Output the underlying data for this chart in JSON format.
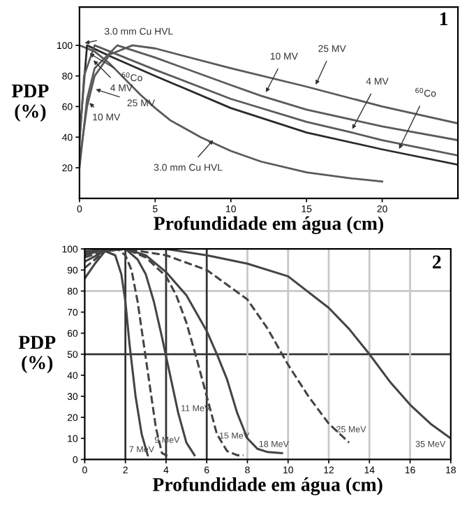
{
  "chart_data": [
    {
      "type": "line",
      "xlabel": "Profundidade em água (cm)",
      "ylabel": "PDP\n(%)",
      "xlim": [
        0,
        25
      ],
      "ylim": [
        0,
        125
      ],
      "xticks": [
        0,
        5,
        10,
        15,
        20
      ],
      "yticks": [
        20,
        40,
        60,
        80,
        100
      ],
      "grid": false,
      "legend": false,
      "marker": "none",
      "series": [
        {
          "color": "#5a5a5a",
          "x": [
            0,
            1,
            2,
            3,
            4,
            5,
            6,
            8,
            10,
            12,
            15,
            18,
            20
          ],
          "values": [
            100,
            96,
            88,
            78,
            68,
            59,
            51,
            40,
            31,
            24,
            17,
            13,
            11
          ]
        },
        {
          "color": "#2a2a2a",
          "x": [
            0,
            0.5,
            2,
            5,
            10,
            15,
            20,
            25
          ],
          "values": [
            40,
            100,
            93,
            80,
            59,
            43,
            32,
            22
          ]
        },
        {
          "color": "#5a5a5a",
          "x": [
            0,
            0.3,
            1,
            5,
            10,
            15,
            18,
            20,
            25
          ],
          "values": [
            35,
            80,
            100,
            84,
            65,
            50,
            43,
            38,
            28
          ]
        },
        {
          "color": "#5a5a5a",
          "x": [
            0,
            0.5,
            1,
            2.5,
            5,
            10,
            12,
            15,
            20,
            25
          ],
          "values": [
            20,
            65,
            85,
            100,
            92,
            74,
            67,
            58,
            47,
            38
          ]
        },
        {
          "color": "#5a5a5a",
          "x": [
            0,
            0.5,
            1,
            2,
            3.5,
            5,
            10,
            15,
            20,
            25
          ],
          "values": [
            25,
            60,
            80,
            94,
            100,
            98,
            85,
            73,
            60,
            49
          ]
        }
      ],
      "annotations": [
        "1",
        {
          "text": "3.0 mm Cu HVL",
          "x": 0.1,
          "y": 101
        },
        {
          "text": "$^{60}$Co",
          "x": 0.45,
          "y": 96
        },
        {
          "text": "4 MV",
          "x": 0.74,
          "y": 92
        },
        {
          "text": "25 MV",
          "x": 0.83,
          "y": 72
        },
        {
          "text": "10 MV",
          "x": 0.46,
          "y": 64
        },
        {
          "text": "3.0 mm Cu HVL",
          "x": 9,
          "y": 40
        },
        {
          "text": "10 MV",
          "x": 12.2,
          "y": 67
        },
        {
          "text": "25 MV",
          "x": 15.5,
          "y": 72
        },
        {
          "text": "4 MV",
          "x": 17.9,
          "y": 43
        },
        {
          "text": "$^{60}$Co",
          "x": 21,
          "y": 30
        }
      ]
    },
    {
      "type": "line",
      "xlabel": "Profundidade em água (cm)",
      "ylabel": "PDP\n(%)",
      "xlim": [
        0,
        18
      ],
      "ylim": [
        0,
        100
      ],
      "xticks": [
        0,
        2,
        4,
        6,
        8,
        10,
        12,
        14,
        16,
        18
      ],
      "yticks": [
        0,
        10,
        20,
        30,
        40,
        50,
        60,
        70,
        80,
        90,
        100
      ],
      "grid": false,
      "legend": false,
      "marker": "none",
      "ref_lines": [
        {
          "axis": "y",
          "value": 80,
          "color": "#c8c8c8"
        },
        {
          "axis": "y",
          "value": 50,
          "color": "#333333"
        },
        {
          "axis": "x",
          "value": 2,
          "color": "#333333"
        },
        {
          "axis": "x",
          "value": 4,
          "color": "#333333"
        },
        {
          "axis": "x",
          "value": 6,
          "color": "#333333"
        },
        {
          "axis": "x",
          "value": 8,
          "color": "#c8c8c8"
        },
        {
          "axis": "x",
          "value": 10,
          "color": "#c8c8c8"
        },
        {
          "axis": "x",
          "value": 12,
          "color": "#c8c8c8"
        },
        {
          "axis": "x",
          "value": 14,
          "color": "#c8c8c8"
        },
        {
          "axis": "x",
          "value": 16,
          "color": "#c8c8c8"
        }
      ],
      "series": [
        {
          "color": "#444444",
          "line_style": "solid",
          "x": [
            0,
            0.5,
            1,
            1.5,
            1.8,
            2,
            2.2,
            2.5,
            2.8,
            3.1
          ],
          "values": [
            86,
            93,
            99,
            97,
            88,
            75,
            55,
            30,
            12,
            2
          ]
        },
        {
          "color": "#444444",
          "line_style": "dashed",
          "x": [
            0,
            1,
            1.6,
            2,
            2.3,
            2.6,
            2.9,
            3.2,
            3.5,
            3.8,
            4.2
          ],
          "values": [
            91,
            99,
            100,
            97,
            90,
            75,
            55,
            35,
            15,
            3,
            1
          ]
        },
        {
          "color": "#444444",
          "line_style": "solid",
          "x": [
            0,
            1,
            2,
            2.6,
            3,
            3.4,
            3.8,
            4.2,
            4.6,
            5,
            5.4
          ],
          "values": [
            94,
            99,
            100,
            95,
            88,
            75,
            58,
            40,
            22,
            8,
            2
          ]
        },
        {
          "color": "#444444",
          "line_style": "dashed",
          "x": [
            0,
            1,
            2,
            3,
            4,
            4.5,
            5,
            5.5,
            6,
            6.5,
            7,
            7.5,
            7.8
          ],
          "values": [
            96,
            99,
            100,
            96,
            87,
            78,
            65,
            48,
            30,
            12,
            4,
            2,
            2
          ]
        },
        {
          "color": "#444444",
          "line_style": "solid",
          "x": [
            0,
            1,
            2,
            3,
            4,
            5,
            6,
            6.5,
            7,
            7.5,
            8,
            8.5,
            9,
            9.7
          ],
          "values": [
            97,
            100,
            100,
            97,
            89,
            78,
            61,
            50,
            38,
            22,
            10,
            5,
            3.5,
            3
          ]
        },
        {
          "color": "#444444",
          "line_style": "dashed",
          "x": [
            0,
            1,
            2,
            4,
            6,
            8,
            9,
            10,
            11,
            12,
            13
          ],
          "values": [
            98,
            100,
            100,
            97,
            90,
            76,
            62,
            45,
            30,
            17,
            8
          ]
        },
        {
          "color": "#444444",
          "line_style": "solid",
          "x": [
            0,
            2,
            4,
            6,
            8,
            10,
            12,
            13,
            14,
            15,
            16,
            17,
            18
          ],
          "values": [
            99,
            100,
            100,
            97,
            93,
            87,
            72,
            62,
            50,
            37,
            26,
            17,
            10
          ]
        }
      ],
      "annotations": [
        "2",
        "7 MeV",
        "9 MeV",
        "11 MeV",
        "15 MeV",
        "18 MeV",
        "25 MeV",
        "35 MeV"
      ]
    }
  ]
}
